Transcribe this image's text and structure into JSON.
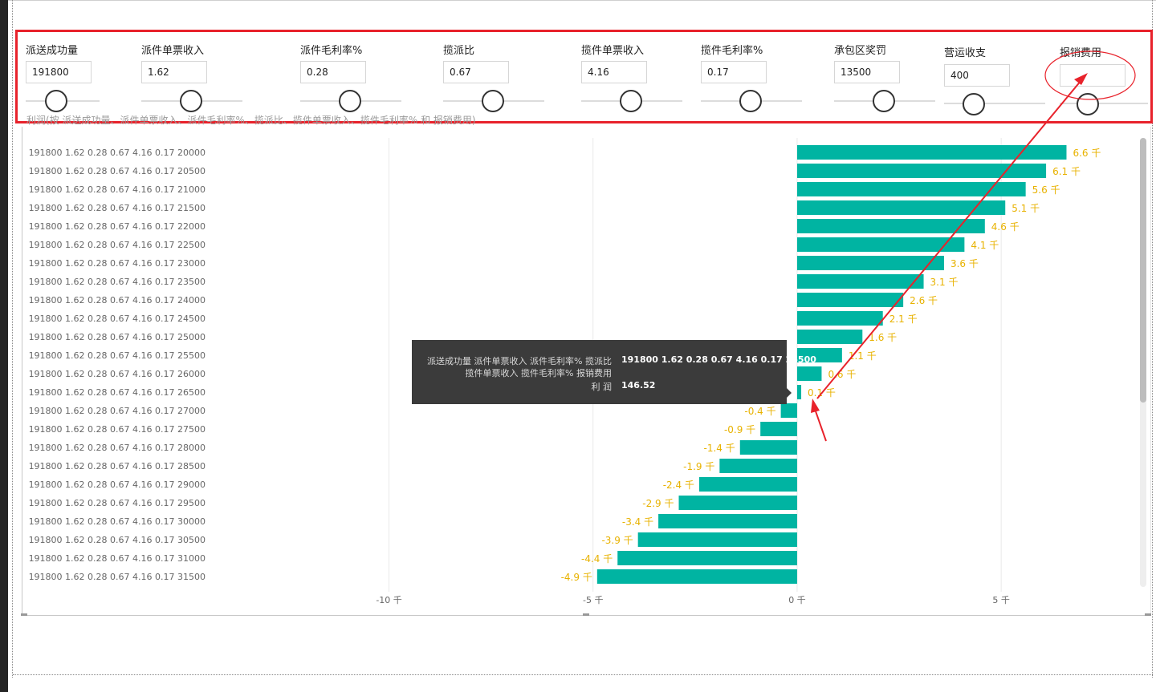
{
  "slicers": [
    {
      "label": "派送成功量",
      "value": "191800",
      "slider": 0.15
    },
    {
      "label": "派件单票收入",
      "value": "1.62",
      "slider": 0.3
    },
    {
      "label": "派件毛利率%",
      "value": "0.28",
      "slider": 0.3
    },
    {
      "label": "揽派比",
      "value": "0.67",
      "slider": 0.3
    },
    {
      "label": "揽件单票收入",
      "value": "4.16",
      "slider": 0.3
    },
    {
      "label": "揽件毛利率%",
      "value": "0.17",
      "slider": 0.3
    },
    {
      "label": "承包区奖罚",
      "value": "13500",
      "slider": 0.3
    },
    {
      "label": "营运收支",
      "value": "400",
      "slider": 0.1
    },
    {
      "label": "报销费用",
      "value": "",
      "slider": 0.1
    }
  ],
  "chart_title": "利润(按 派送成功量、派件单票收入、派件毛利率%、揽派比、揽件单票收入、揽件毛利率% 和 报销费用)",
  "chart_data": {
    "type": "bar",
    "orientation": "horizontal",
    "category_prefix": "191800 1.62 0.28 0.67 4.16 0.17",
    "categories": [
      "20000",
      "20500",
      "21000",
      "21500",
      "22000",
      "22500",
      "23000",
      "23500",
      "24000",
      "24500",
      "25000",
      "25500",
      "26000",
      "26500",
      "27000",
      "27500",
      "28000",
      "28500",
      "29000",
      "29500",
      "30000",
      "30500",
      "31000",
      "31500"
    ],
    "values": [
      6.6,
      6.1,
      5.6,
      5.1,
      4.6,
      4.1,
      3.6,
      3.1,
      2.6,
      2.1,
      1.6,
      1.1,
      0.6,
      0.1,
      -0.4,
      -0.9,
      -1.4,
      -1.9,
      -2.4,
      -2.9,
      -3.4,
      -3.9,
      -4.4,
      -4.9
    ],
    "data_labels": [
      "6.6 千",
      "6.1 千",
      "5.6 千",
      "5.1 千",
      "4.6 千",
      "4.1 千",
      "3.6 千",
      "3.1 千",
      "2.6 千",
      "2.1 千",
      "1.6 千",
      "1.1 千",
      "0.6 千",
      "0.1 千",
      "-0.4 千",
      "-0.9 千",
      "-1.4 千",
      "-1.9 千",
      "-2.4 千",
      "-2.9 千",
      "-3.4 千",
      "-3.9 千",
      "-4.4 千",
      "-4.9 千"
    ],
    "x_ticks": [
      {
        "value": -10,
        "label": "-10 千"
      },
      {
        "value": -5,
        "label": "-5 千"
      },
      {
        "value": 0,
        "label": "0 千"
      },
      {
        "value": 5,
        "label": "5 千"
      }
    ],
    "xlim": [
      -19.0,
      8.4
    ],
    "unit": "千",
    "bar_color": "#00b4a2",
    "label_color": "#e8b200",
    "grid": true
  },
  "tooltip": {
    "label1_line1": "派送成功量 派件单票收入 派件毛利率% 揽派比",
    "label1_line2": "揽件单票收入 揽件毛利率% 报销费用",
    "value1": "191800 1.62 0.28 0.67 4.16 0.17 26500",
    "label2": "利 润",
    "value2": "146.52"
  },
  "annotation_color": "#e8222b"
}
